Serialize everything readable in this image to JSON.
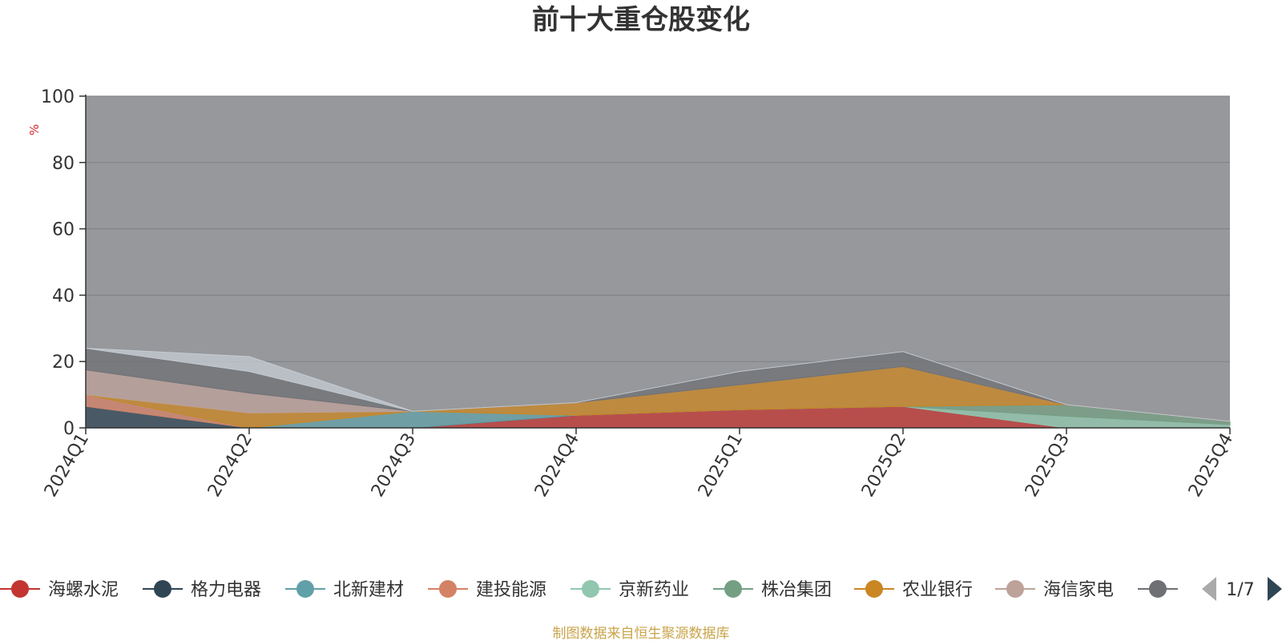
{
  "chart_data": {
    "type": "area",
    "title": "前十大重仓股变化",
    "ylabel": "%",
    "ylim": [
      0,
      100
    ],
    "yticks": [
      0,
      20,
      40,
      60,
      80,
      100
    ],
    "categories": [
      "2024Q1",
      "2024Q2",
      "2024Q3",
      "2024Q4",
      "2025Q1",
      "2025Q2",
      "2025Q3",
      "2025Q4"
    ],
    "grid": true,
    "legend_position": "bottom",
    "series": [
      {
        "name": "海螺水泥",
        "color": "#c23531",
        "values": [
          0,
          0,
          0,
          3.8,
          5.5,
          6.5,
          0,
          0
        ]
      },
      {
        "name": "格力电器",
        "color": "#2f4554",
        "values": [
          6.5,
          0,
          0,
          0,
          0,
          0,
          0,
          0
        ]
      },
      {
        "name": "北新建材",
        "color": "#61a0a8",
        "values": [
          0,
          0,
          5,
          0,
          0,
          0,
          0,
          0
        ]
      },
      {
        "name": "建投能源",
        "color": "#d48265",
        "values": [
          3.5,
          0,
          0,
          0,
          0,
          0,
          0,
          0
        ]
      },
      {
        "name": "京新药业",
        "color": "#91c7ae",
        "values": [
          0,
          0,
          0,
          0,
          0,
          0,
          3.5,
          1.0
        ]
      },
      {
        "name": "株冶集团",
        "color": "#749f83",
        "values": [
          0,
          0,
          0,
          0,
          0,
          0,
          3.5,
          1.0
        ]
      },
      {
        "name": "农业银行",
        "color": "#ca8622",
        "values": [
          0,
          4.5,
          0,
          3.8,
          7.5,
          12,
          0,
          0
        ]
      },
      {
        "name": "海信家电",
        "color": "#bda29a",
        "values": [
          7.5,
          6,
          0,
          0,
          0,
          0,
          0,
          0
        ]
      },
      {
        "name": "",
        "color": "#6e7074",
        "values": [
          6.5,
          6.5,
          0,
          0,
          4,
          4.5,
          0,
          0
        ]
      },
      {
        "name": "",
        "color": "#c4ccd3",
        "values": [
          0,
          4.5,
          0,
          0,
          0,
          0,
          0,
          0
        ]
      }
    ]
  },
  "legend": {
    "items": [
      {
        "name": "海螺水泥",
        "color": "#c23531"
      },
      {
        "name": "格力电器",
        "color": "#2f4554"
      },
      {
        "name": "北新建材",
        "color": "#61a0a8"
      },
      {
        "name": "建投能源",
        "color": "#d48265"
      },
      {
        "name": "京新药业",
        "color": "#91c7ae"
      },
      {
        "name": "株冶集团",
        "color": "#749f83"
      },
      {
        "name": "农业银行",
        "color": "#ca8622"
      },
      {
        "name": "海信家电",
        "color": "#bda29a"
      },
      {
        "name": "",
        "color": "#6e7074"
      }
    ],
    "page_indicator": "1/7"
  },
  "footer": {
    "source": "制图数据来自恒生聚源数据库"
  },
  "colors": {
    "plot_background": "#97989c",
    "text": "#333333",
    "ylabel": "#d62728",
    "source": "#c9a44a"
  }
}
